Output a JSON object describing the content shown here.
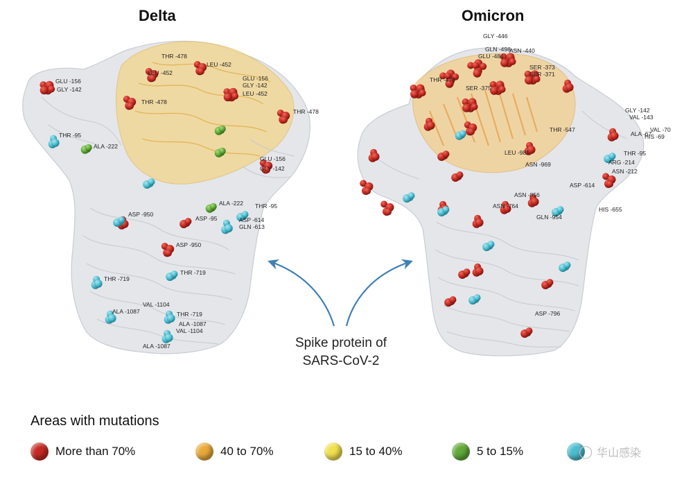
{
  "panels": {
    "left_title": "Delta",
    "right_title": "Omicron"
  },
  "caption": {
    "line1": "Spike protein of",
    "line2": "SARS-CoV-2"
  },
  "legend": {
    "title": "Areas with mutations",
    "items": [
      {
        "label": "More than 70%",
        "color": "#c42a22"
      },
      {
        "label": "40 to 70%",
        "color": "#e9a93a"
      },
      {
        "label": "15 to 40%",
        "color": "#f1df4e"
      },
      {
        "label": "5 to 15%",
        "color": "#62a83a"
      },
      {
        "label": "",
        "color": "#4dbcd0"
      }
    ]
  },
  "delta_labels": [
    "THR -478",
    "LEU -452",
    "LEU -452",
    "GLU -156",
    "GLY -142",
    "GLU -156",
    "GLY -142",
    "LEU -452",
    "THR -478",
    "THR -478",
    "THR -95",
    "ALA -222",
    "GLU -156",
    "GLY -142",
    "ALA -222",
    "THR -95",
    "ASP -950",
    "ASP -95",
    "ASP -614",
    "GLN -613",
    "ASP -950",
    "THR -719",
    "THR -719",
    "ALA -1087",
    "VAL -1104",
    "THR -719",
    "ALA -1087",
    "VAL -1104",
    "ALA -1087"
  ],
  "omicron_labels": [
    "GLY -446",
    "GLN -498",
    "ASN -440",
    "GLU -484",
    "SER -373",
    "SER -371",
    "THR -478",
    "SER -375",
    "GLY -142",
    "VAL -143",
    "VAL -70",
    "ALA -67",
    "HIS -69",
    "THR -547",
    "THR -95",
    "LEU -981",
    "ASN -969",
    "ARG -214",
    "ASN -212",
    "ASN -856",
    "ASP -614",
    "ASN -764",
    "HIS -655",
    "GLN -954",
    "ASP -796"
  ],
  "watermark_text": "华山感染",
  "colors": {
    "red": "#c42a22",
    "orange": "#e9a93a",
    "yellow": "#f1df4e",
    "green": "#62a83a",
    "cyan": "#4dbcd0",
    "arrow": "#3f7fb5",
    "protein": "#d8dbe0"
  }
}
